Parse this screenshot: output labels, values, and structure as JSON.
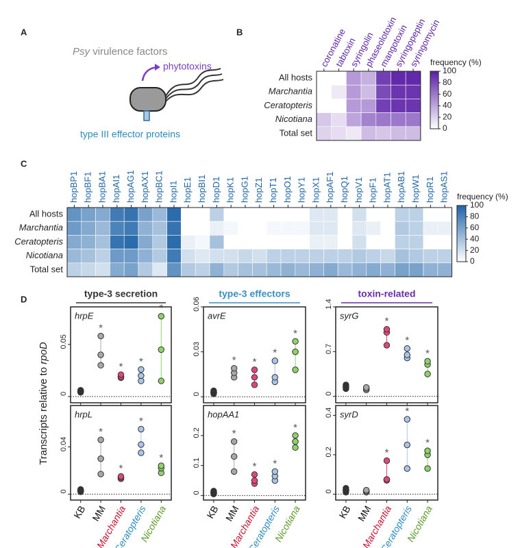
{
  "panel_a": {
    "letter": "A",
    "title_italic": "Psy",
    "title_rest": "virulence factors",
    "toxins": "phytotoxins",
    "effectors": "type III effector proteins"
  },
  "panel_b": {
    "letter": "B",
    "columns": [
      "coronatine",
      "tabtoxin",
      "syringolin",
      "phaseolotoxin",
      "mangotoxin",
      "syringopeptin",
      "syringomycin"
    ],
    "rows": [
      "All hosts",
      "Marchantia",
      "Ceratopteris",
      "Nicotiana",
      "Total set"
    ],
    "values": [
      [
        0,
        0,
        45,
        35,
        85,
        95,
        95
      ],
      [
        0,
        10,
        45,
        30,
        80,
        90,
        90
      ],
      [
        0,
        0,
        45,
        45,
        85,
        90,
        90
      ],
      [
        25,
        15,
        40,
        55,
        60,
        60,
        60
      ],
      [
        20,
        15,
        10,
        30,
        25,
        30,
        30
      ]
    ],
    "color": "#5a1ea6",
    "scale_label": "frequency (%)",
    "scale_lim": [
      0,
      100
    ],
    "scale_ticks": [
      0,
      20,
      40,
      60,
      80,
      100
    ]
  },
  "panel_c": {
    "letter": "C",
    "columns": [
      "hopBP1",
      "hopBF1",
      "hopBA1",
      "hopAI1",
      "hopAG1",
      "hopAX1",
      "hopBC1",
      "hopI1",
      "hopE1",
      "hopBI1",
      "hopD1",
      "hopK1",
      "hopG1",
      "hopZ1",
      "hopT1",
      "hopO1",
      "hopY1",
      "hopX1",
      "hopAF1",
      "hopQ1",
      "hopV1",
      "hopF1",
      "hopAT1",
      "hopAB1",
      "hopW1",
      "hopR1",
      "hopAS1"
    ],
    "rows": [
      "All hosts",
      "Marchantia",
      "Ceratopteris",
      "Nicotiana",
      "Total set"
    ],
    "values": [
      [
        70,
        60,
        55,
        85,
        90,
        60,
        45,
        95,
        0,
        0,
        30,
        0,
        0,
        0,
        0,
        0,
        0,
        15,
        15,
        0,
        20,
        0,
        0,
        30,
        30,
        0,
        0
      ],
      [
        65,
        55,
        45,
        80,
        85,
        50,
        40,
        90,
        0,
        0,
        10,
        5,
        0,
        0,
        5,
        5,
        5,
        15,
        15,
        0,
        15,
        10,
        0,
        35,
        30,
        10,
        10
      ],
      [
        55,
        50,
        40,
        90,
        95,
        55,
        35,
        95,
        10,
        5,
        40,
        0,
        0,
        0,
        0,
        0,
        0,
        10,
        10,
        0,
        20,
        0,
        0,
        30,
        30,
        0,
        0
      ],
      [
        45,
        40,
        30,
        65,
        65,
        50,
        35,
        85,
        20,
        15,
        20,
        20,
        25,
        20,
        30,
        30,
        30,
        30,
        30,
        30,
        35,
        30,
        25,
        40,
        35,
        30,
        30
      ],
      [
        30,
        25,
        20,
        55,
        60,
        35,
        15,
        70,
        35,
        30,
        50,
        35,
        40,
        40,
        45,
        50,
        45,
        50,
        55,
        45,
        50,
        55,
        50,
        60,
        60,
        50,
        50
      ]
    ],
    "color": "#1f64a8",
    "scale_label": "frequency (%)",
    "scale_lim": [
      0,
      100
    ],
    "scale_ticks": [
      0,
      20,
      40,
      60,
      80,
      100
    ]
  },
  "panel_d": {
    "letter": "D",
    "ylabel_text": "Transcripts relative to",
    "ylabel_italic": "rpoD",
    "groups": [
      {
        "name": "type-3 secretion",
        "color": "#333333"
      },
      {
        "name": "type-3 effectors",
        "color": "#3a8fc4"
      },
      {
        "name": "toxin-related",
        "color": "#6a2ca8"
      }
    ],
    "categories": [
      "KB",
      "MM",
      "Marchantia",
      "Ceratopteris",
      "Nicotiana"
    ],
    "category_colors": [
      "#111111",
      "#111111",
      "#c8102e",
      "#2b8cbe",
      "#5a9a2a"
    ],
    "point_colors": [
      "#333333",
      "#a8a8a8",
      "#e0457b",
      "#a9c6e8",
      "#8fd16a"
    ],
    "sig_label": "*",
    "plots": [
      {
        "gene": "hrpE",
        "ylim": [
          -0.006,
          0.086
        ],
        "yticks": [
          0,
          0.05
        ],
        "values": [
          [
            0.004,
            0.005,
            0.006
          ],
          [
            0.03,
            0.04,
            0.058
          ],
          [
            0.018,
            0.019,
            0.021
          ],
          [
            0.015,
            0.02,
            0.026
          ],
          [
            0.015,
            0.045,
            0.077
          ]
        ],
        "significant": [
          false,
          true,
          true,
          true,
          true
        ]
      },
      {
        "gene": "avrE",
        "ylim": [
          -0.004,
          0.06
        ],
        "yticks": [
          0,
          0.03,
          0.06
        ],
        "values": [
          [
            0.002,
            0.003,
            0.004
          ],
          [
            0.013,
            0.016,
            0.019
          ],
          [
            0.008,
            0.013,
            0.018
          ],
          [
            0.01,
            0.013,
            0.024
          ],
          [
            0.018,
            0.03,
            0.037
          ]
        ],
        "significant": [
          false,
          true,
          true,
          true,
          true
        ]
      },
      {
        "gene": "syrG",
        "ylim": [
          -0.1,
          1.4
        ],
        "yticks": [
          0,
          0.7,
          1.4
        ],
        "values": [
          [
            0.12,
            0.15,
            0.18
          ],
          [
            0.1,
            0.12,
            0.14
          ],
          [
            0.8,
            1.0,
            1.05
          ],
          [
            0.6,
            0.65,
            0.75
          ],
          [
            0.35,
            0.5,
            0.55
          ]
        ],
        "significant": [
          false,
          false,
          true,
          true,
          true
        ]
      },
      {
        "gene": "hrpL",
        "ylim": [
          -0.005,
          0.075
        ],
        "yticks": [
          0,
          0.04
        ],
        "values": [
          [
            0.002,
            0.003,
            0.004
          ],
          [
            0.017,
            0.03,
            0.046
          ],
          [
            0.013,
            0.014,
            0.015
          ],
          [
            0.035,
            0.042,
            0.055
          ],
          [
            0.018,
            0.022,
            0.024
          ]
        ],
        "significant": [
          false,
          true,
          true,
          true,
          true
        ]
      },
      {
        "gene": "hopAA1",
        "ylim": [
          -0.015,
          0.3
        ],
        "yticks": [
          0,
          0.1,
          0.2
        ],
        "values": [
          [
            0.005,
            0.01,
            0.015
          ],
          [
            0.08,
            0.13,
            0.18
          ],
          [
            0.04,
            0.05,
            0.07
          ],
          [
            0.05,
            0.065,
            0.08
          ],
          [
            0.16,
            0.18,
            0.2
          ]
        ],
        "significant": [
          false,
          true,
          true,
          true,
          true
        ]
      },
      {
        "gene": "syrD",
        "ylim": [
          -0.03,
          0.45
        ],
        "yticks": [
          0,
          0.2,
          0.4
        ],
        "values": [
          [
            0.01,
            0.02,
            0.03
          ],
          [
            0.01,
            0.015,
            0.02
          ],
          [
            0.07,
            0.075,
            0.17
          ],
          [
            0.13,
            0.25,
            0.38
          ],
          [
            0.13,
            0.2,
            0.22
          ]
        ],
        "significant": [
          false,
          false,
          true,
          true,
          true
        ]
      }
    ]
  }
}
